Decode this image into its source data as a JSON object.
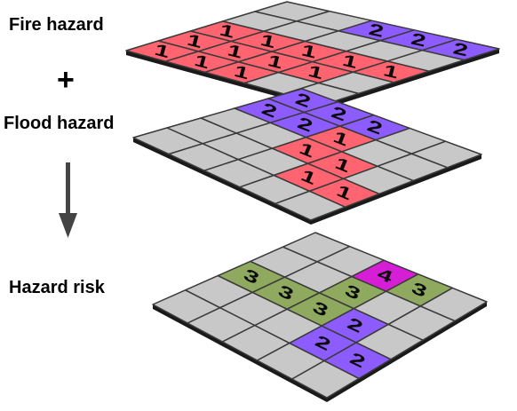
{
  "labels": {
    "fire": "Fire hazard",
    "plus": "+",
    "flood": "Flood hazard",
    "result": "Hazard risk"
  },
  "colors": {
    "empty": "#c8c8c8",
    "fire": "#ff6470",
    "flood": "#8c5cff",
    "risk3": "#8faa5e",
    "risk4": "#d61ed6"
  },
  "layers": [
    {
      "name": "fire-hazard-layer",
      "grid": [
        [
          "",
          "",
          "2",
          "2",
          "2"
        ],
        [
          "",
          "",
          "",
          "",
          ""
        ],
        [
          "1",
          "1",
          "1",
          "1",
          "1"
        ],
        [
          "1",
          "1",
          "1",
          "1",
          ""
        ],
        [
          "1",
          "1",
          "1",
          "",
          ""
        ]
      ]
    },
    {
      "name": "flood-hazard-layer",
      "grid": [
        [
          "2",
          "2",
          "2",
          "",
          ""
        ],
        [
          "2",
          "2",
          "1",
          "",
          ""
        ],
        [
          "",
          "",
          "1",
          "1",
          ""
        ],
        [
          "",
          "",
          "",
          "1",
          "1"
        ],
        [
          "",
          "",
          "",
          "",
          ""
        ]
      ]
    },
    {
      "name": "hazard-risk-layer",
      "grid": [
        [
          "",
          "",
          "4",
          "3",
          ""
        ],
        [
          "",
          "",
          "3",
          "",
          ""
        ],
        [
          "3",
          "3",
          "3",
          "2",
          ""
        ],
        [
          "",
          "",
          "",
          "2",
          "2"
        ],
        [
          "",
          "",
          "",
          "",
          ""
        ]
      ]
    }
  ]
}
